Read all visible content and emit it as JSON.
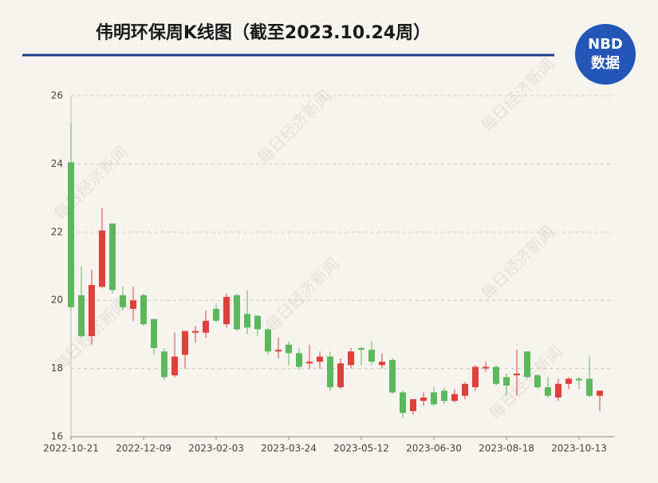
{
  "chart_data": {
    "type": "candlestick",
    "title": "伟明环保周K线图（截至2023.10.24周）",
    "logo": {
      "top": "NBD",
      "bottom": "数据"
    },
    "watermark": "每日经济新闻",
    "up_color": "#e0403a",
    "down_color": "#5cb85c",
    "categories": [
      "2022-10-21",
      null,
      null,
      null,
      null,
      null,
      null,
      "2022-12-09",
      null,
      null,
      null,
      null,
      null,
      null,
      "2023-02-03",
      null,
      null,
      null,
      null,
      null,
      null,
      "2023-03-24",
      null,
      null,
      null,
      null,
      null,
      null,
      "2023-05-12",
      null,
      null,
      null,
      null,
      null,
      null,
      "2023-06-30",
      null,
      null,
      null,
      null,
      null,
      null,
      "2023-08-18",
      null,
      null,
      null,
      null,
      null,
      null,
      "2023-10-13",
      null,
      null
    ],
    "open": [
      24.05,
      20.15,
      18.95,
      20.4,
      22.25,
      20.15,
      19.75,
      20.15,
      19.45,
      18.5,
      17.8,
      18.4,
      19.05,
      19.05,
      19.75,
      19.3,
      20.15,
      19.6,
      19.55,
      19.15,
      18.5,
      18.7,
      18.45,
      18.15,
      18.2,
      18.35,
      17.45,
      18.1,
      18.6,
      18.55,
      18.1,
      18.25,
      17.3,
      16.75,
      17.05,
      17.3,
      17.35,
      17.05,
      17.2,
      17.45,
      18.0,
      18.05,
      17.75,
      17.8,
      18.5,
      17.8,
      17.45,
      17.15,
      17.55,
      17.7,
      17.7,
      17.2
    ],
    "close": [
      19.8,
      18.95,
      20.45,
      22.05,
      20.3,
      19.8,
      20.0,
      19.3,
      18.6,
      17.75,
      18.35,
      19.1,
      19.1,
      19.4,
      19.4,
      20.1,
      19.15,
      19.2,
      19.15,
      18.5,
      18.55,
      18.45,
      18.05,
      18.2,
      18.35,
      17.45,
      18.15,
      18.5,
      18.55,
      18.2,
      18.2,
      17.3,
      16.7,
      17.1,
      17.15,
      16.95,
      17.05,
      17.25,
      17.55,
      18.05,
      18.05,
      17.55,
      17.5,
      17.85,
      17.75,
      17.45,
      17.2,
      17.55,
      17.7,
      17.65,
      17.2,
      17.35
    ],
    "high": [
      25.2,
      21.0,
      20.9,
      22.7,
      22.25,
      20.4,
      20.4,
      20.2,
      19.45,
      18.6,
      19.05,
      19.1,
      19.25,
      19.7,
      19.9,
      20.2,
      20.2,
      20.3,
      19.55,
      19.2,
      18.9,
      18.8,
      18.6,
      18.7,
      18.5,
      18.5,
      18.3,
      18.6,
      18.65,
      18.8,
      18.45,
      18.3,
      17.35,
      17.1,
      17.3,
      17.45,
      17.45,
      17.4,
      17.6,
      18.1,
      18.2,
      18.1,
      17.85,
      18.55,
      18.5,
      17.85,
      17.75,
      17.7,
      17.75,
      17.75,
      18.35,
      17.35
    ],
    "low": [
      19.7,
      18.9,
      18.7,
      20.35,
      20.2,
      19.7,
      19.4,
      19.25,
      18.4,
      17.65,
      17.75,
      18.0,
      18.75,
      18.9,
      19.35,
      19.2,
      19.1,
      19.0,
      18.95,
      18.4,
      18.3,
      18.1,
      17.95,
      18.0,
      18.0,
      17.35,
      17.4,
      18.0,
      18.1,
      18.1,
      18.0,
      17.25,
      16.55,
      16.65,
      16.9,
      16.9,
      16.95,
      17.0,
      17.1,
      17.35,
      17.9,
      17.5,
      17.2,
      17.2,
      17.7,
      17.4,
      17.15,
      17.05,
      17.4,
      17.4,
      17.15,
      16.75
    ],
    "ylim": [
      16,
      26
    ],
    "yticks": [
      16,
      18,
      20,
      22,
      24,
      26
    ],
    "grid": true
  }
}
